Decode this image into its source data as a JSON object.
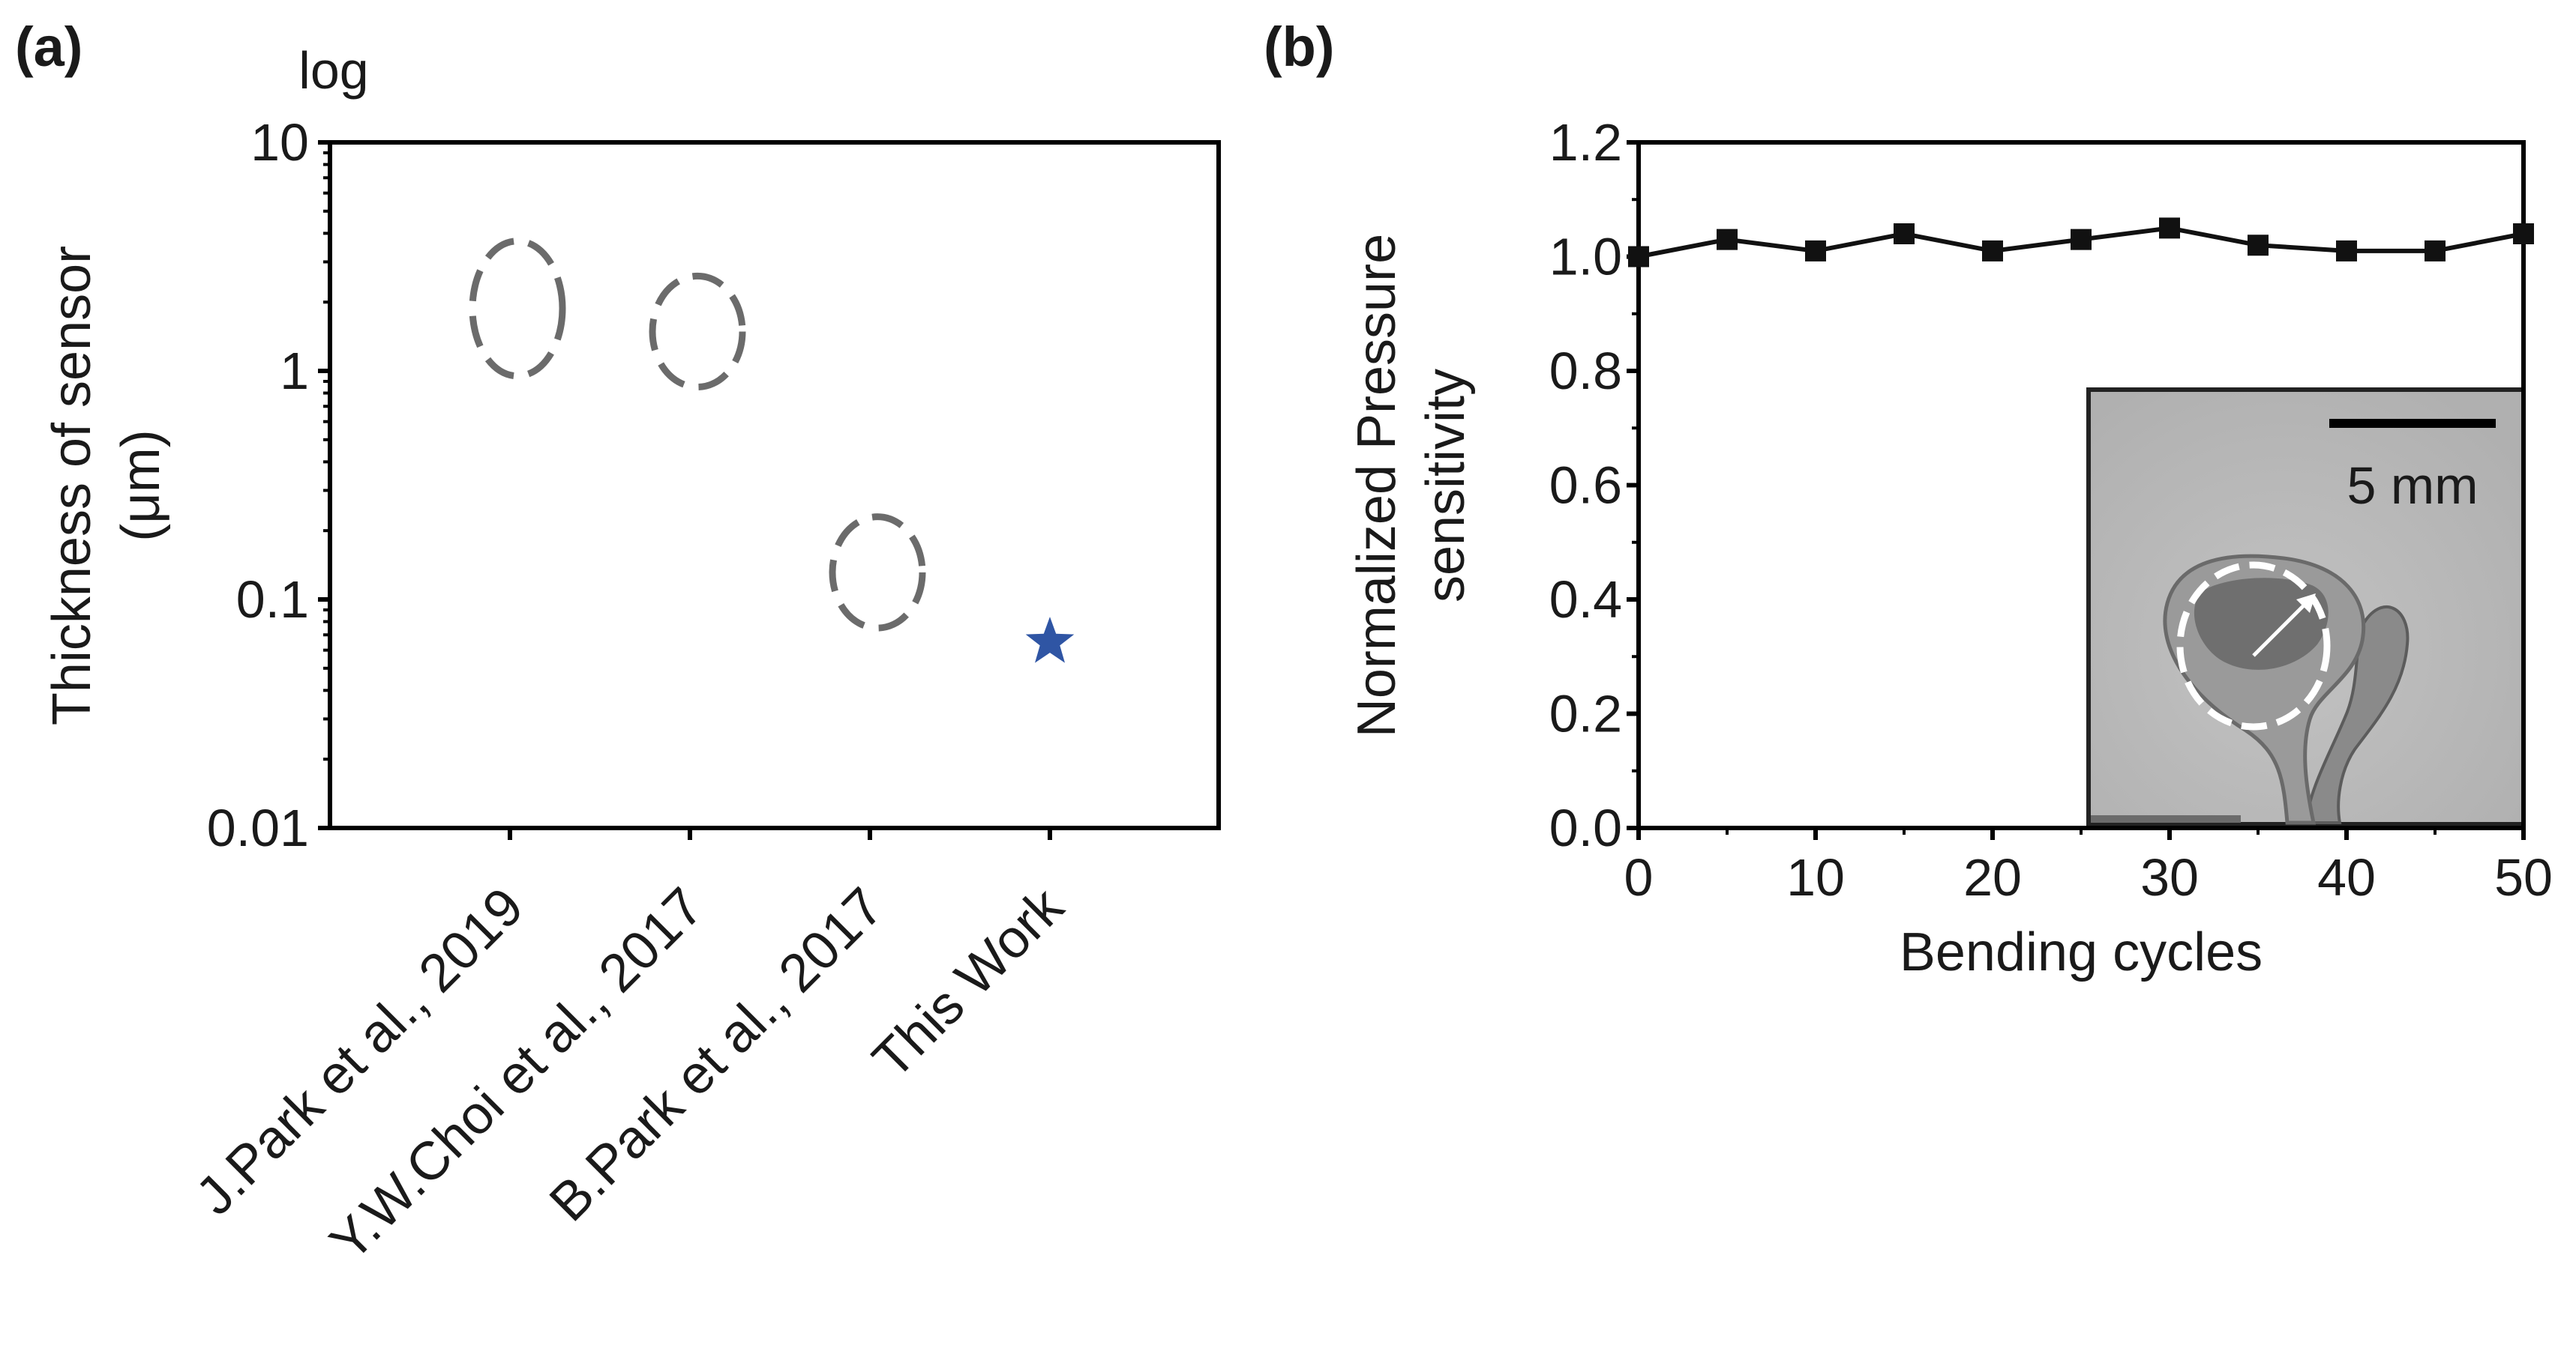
{
  "chart_data": [
    {
      "panel": "(a)",
      "type": "scatter",
      "scale_note": "log",
      "ylabel_lines": [
        "Thickness of sensor",
        "(μm)"
      ],
      "yscale": "log",
      "ylim": [
        0.01,
        10
      ],
      "yticks": [
        {
          "value": 0.01,
          "label": "0.01"
        },
        {
          "value": 0.1,
          "label": "0.1"
        },
        {
          "value": 1,
          "label": "1"
        },
        {
          "value": 10,
          "label": "10"
        }
      ],
      "categories": [
        "J.Park et al., 2019",
        "Y.W.Choi et al., 2017",
        "B.Park et al., 2017",
        "This Work"
      ],
      "points": [
        {
          "category": "J.Park et al., 2019",
          "y": 1.8,
          "y_low": 0.95,
          "y_high": 3.7,
          "marker": "dashed-ellipse"
        },
        {
          "category": "Y.W.Choi et al., 2017",
          "y": 1.5,
          "y_low": 0.85,
          "y_high": 2.6,
          "marker": "dashed-ellipse"
        },
        {
          "category": "B.Park et al., 2017",
          "y": 0.13,
          "y_low": 0.075,
          "y_high": 0.23,
          "marker": "dashed-ellipse"
        },
        {
          "category": "This Work",
          "y": 0.065,
          "marker": "star"
        }
      ],
      "colors": {
        "ellipse": "#6b6b6b",
        "star": "#2f55a4"
      }
    },
    {
      "panel": "(b)",
      "type": "line",
      "xlabel": "Bending cycles",
      "ylabel_lines": [
        "Normalized Pressure",
        "sensitivity"
      ],
      "xlim": [
        0,
        50
      ],
      "ylim": [
        0.0,
        1.2
      ],
      "xticks": [
        {
          "value": 0,
          "label": "0"
        },
        {
          "value": 10,
          "label": "10"
        },
        {
          "value": 20,
          "label": "20"
        },
        {
          "value": 30,
          "label": "30"
        },
        {
          "value": 40,
          "label": "40"
        },
        {
          "value": 50,
          "label": "50"
        }
      ],
      "yticks": [
        {
          "value": 0.0,
          "label": "0.0"
        },
        {
          "value": 0.2,
          "label": "0.2"
        },
        {
          "value": 0.4,
          "label": "0.4"
        },
        {
          "value": 0.6,
          "label": "0.6"
        },
        {
          "value": 0.8,
          "label": "0.8"
        },
        {
          "value": 1.0,
          "label": "1.0"
        },
        {
          "value": 1.2,
          "label": "1.2"
        }
      ],
      "x": [
        0,
        5,
        10,
        15,
        20,
        25,
        30,
        35,
        40,
        45,
        50
      ],
      "y": [
        1.0,
        1.03,
        1.01,
        1.04,
        1.01,
        1.03,
        1.05,
        1.02,
        1.01,
        1.01,
        1.04
      ],
      "inset": {
        "scale_bar_label": "5 mm"
      },
      "colors": {
        "line": "#111111",
        "marker": "#111111"
      }
    }
  ]
}
